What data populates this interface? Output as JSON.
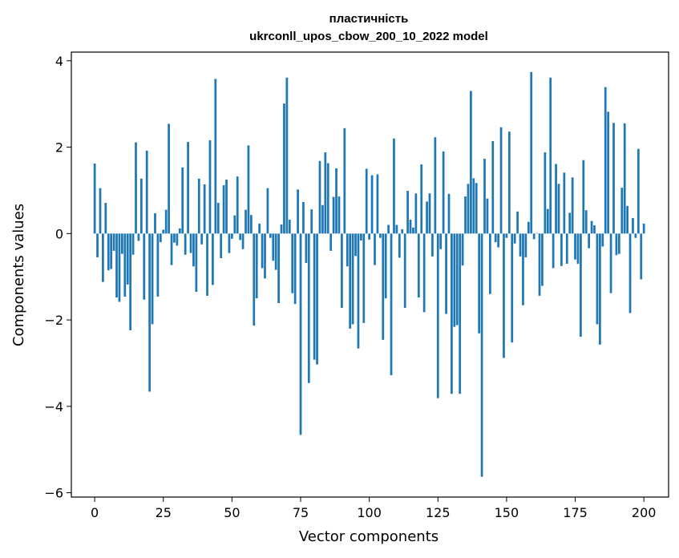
{
  "chart_data": {
    "type": "bar",
    "title": [
      "пластичність",
      "ukrconll_upos_cbow_200_10_2022 model"
    ],
    "xlabel": "Vector components",
    "ylabel": "Components values",
    "xlim": [
      -8.5,
      209
    ],
    "ylim": [
      -6.1,
      4.2
    ],
    "xticks": [
      0,
      25,
      50,
      75,
      100,
      125,
      150,
      175,
      200
    ],
    "xtick_labels": [
      "0",
      "25",
      "50",
      "75",
      "100",
      "125",
      "150",
      "175",
      "200"
    ],
    "yticks": [
      4,
      2,
      0,
      -2,
      -4,
      -6
    ],
    "ytick_labels": [
      "4",
      "2",
      "0",
      "−2",
      "−4",
      "−6"
    ],
    "grid": false,
    "bar_color": "#1f77b4",
    "values": [
      1.62,
      -0.55,
      1.05,
      -1.12,
      0.71,
      -0.85,
      -0.82,
      -0.4,
      -1.48,
      -1.58,
      -0.47,
      -1.46,
      -1.18,
      -2.24,
      -0.49,
      2.11,
      -0.17,
      1.27,
      -1.53,
      1.92,
      -3.66,
      -2.1,
      0.47,
      -1.46,
      -0.2,
      0.09,
      0.55,
      2.54,
      -0.73,
      -0.21,
      -0.28,
      0.12,
      1.53,
      -0.49,
      2.12,
      -0.45,
      -0.76,
      -1.35,
      1.27,
      -0.25,
      1.14,
      -1.44,
      2.16,
      -1.19,
      3.58,
      0.71,
      -0.57,
      1.12,
      1.25,
      -0.45,
      -0.12,
      0.42,
      1.32,
      -0.15,
      -0.36,
      0.55,
      2.04,
      0.43,
      -2.13,
      -1.5,
      0.23,
      -0.8,
      -1.04,
      1.05,
      -0.1,
      -0.63,
      -0.84,
      -1.61,
      0.21,
      3.01,
      3.61,
      0.32,
      -1.38,
      -1.63,
      1.02,
      -4.66,
      0.73,
      -0.68,
      -3.46,
      0.56,
      -2.92,
      -3.03,
      1.68,
      0.66,
      1.88,
      1.63,
      -0.4,
      0.85,
      1.51,
      0.86,
      -1.72,
      2.44,
      -0.76,
      -2.2,
      -2.1,
      -0.52,
      -2.66,
      -0.16,
      -2.07,
      1.5,
      -0.14,
      1.35,
      -0.73,
      1.37,
      -0.1,
      -2.46,
      -1.5,
      0.2,
      -3.28,
      2.2,
      0.2,
      -0.56,
      0.1,
      -1.72,
      0.99,
      0.32,
      0.14,
      0.93,
      -1.48,
      1.6,
      -1.82,
      0.74,
      0.93,
      -0.53,
      2.23,
      -3.81,
      -0.36,
      1.9,
      -1.86,
      0.92,
      -3.71,
      -2.16,
      -2.12,
      -3.71,
      -0.74,
      0.86,
      1.15,
      3.3,
      1.28,
      1.17,
      -2.31,
      -5.63,
      1.73,
      0.81,
      -1.4,
      2.14,
      -0.2,
      -0.32,
      2.46,
      -2.88,
      -0.1,
      2.36,
      -2.52,
      -0.23,
      0.51,
      -0.53,
      -1.66,
      -0.55,
      0.27,
      3.74,
      -0.13,
      0.01,
      -1.44,
      -1.21,
      1.88,
      0.57,
      3.61,
      -0.8,
      1.61,
      1.15,
      -0.75,
      1.41,
      -0.7,
      0.48,
      1.3,
      -0.6,
      -0.7,
      -2.39,
      1.7,
      0.54,
      -0.34,
      0.29,
      0.19,
      -2.1,
      -2.57,
      -0.3,
      3.39,
      2.82,
      -1.38,
      2.56,
      -0.5,
      -0.47,
      1.06,
      2.55,
      0.64,
      -1.84,
      0.36,
      -0.1,
      1.96,
      -1.06,
      0.23
    ]
  }
}
